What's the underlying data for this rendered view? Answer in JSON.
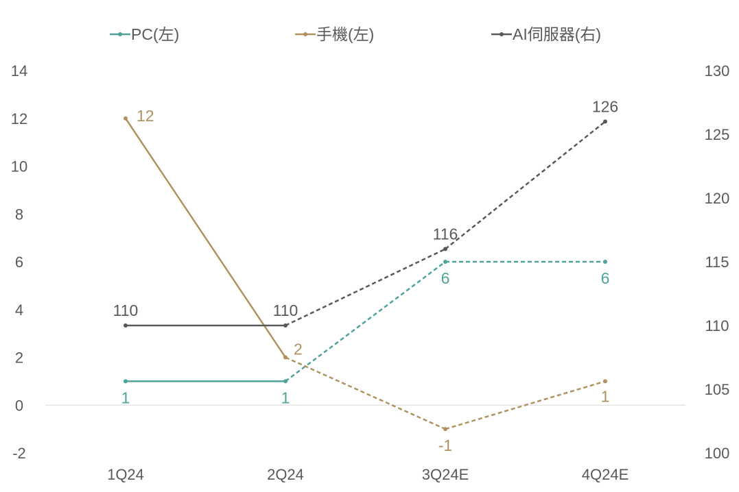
{
  "chart_data": {
    "type": "line",
    "categories": [
      "1Q24",
      "2Q24",
      "3Q24E",
      "4Q24E"
    ],
    "forecast_from_index": 1,
    "series": [
      {
        "name": "PC(左)",
        "axis": "left",
        "color": "#4ea399",
        "values": [
          1,
          1,
          6,
          6
        ],
        "labels": [
          "1",
          "1",
          "6",
          "6"
        ]
      },
      {
        "name": "手機(左)",
        "axis": "left",
        "color": "#b09260",
        "values": [
          12,
          2,
          -1,
          1
        ],
        "labels": [
          "12",
          "2",
          "-1",
          "1"
        ]
      },
      {
        "name": "AI伺服器(右)",
        "axis": "right",
        "color": "#595959",
        "values": [
          110,
          110,
          116,
          126
        ],
        "labels": [
          "110",
          "110",
          "116",
          "126"
        ]
      }
    ],
    "left_axis": {
      "min": -2,
      "max": 14,
      "ticks": [
        "-2",
        "0",
        "2",
        "4",
        "6",
        "8",
        "10",
        "12",
        "14"
      ]
    },
    "right_axis": {
      "min": 100,
      "max": 130,
      "ticks": [
        "100",
        "105",
        "110",
        "115",
        "120",
        "125",
        "130"
      ]
    },
    "legend_position": "top",
    "grid": false
  }
}
